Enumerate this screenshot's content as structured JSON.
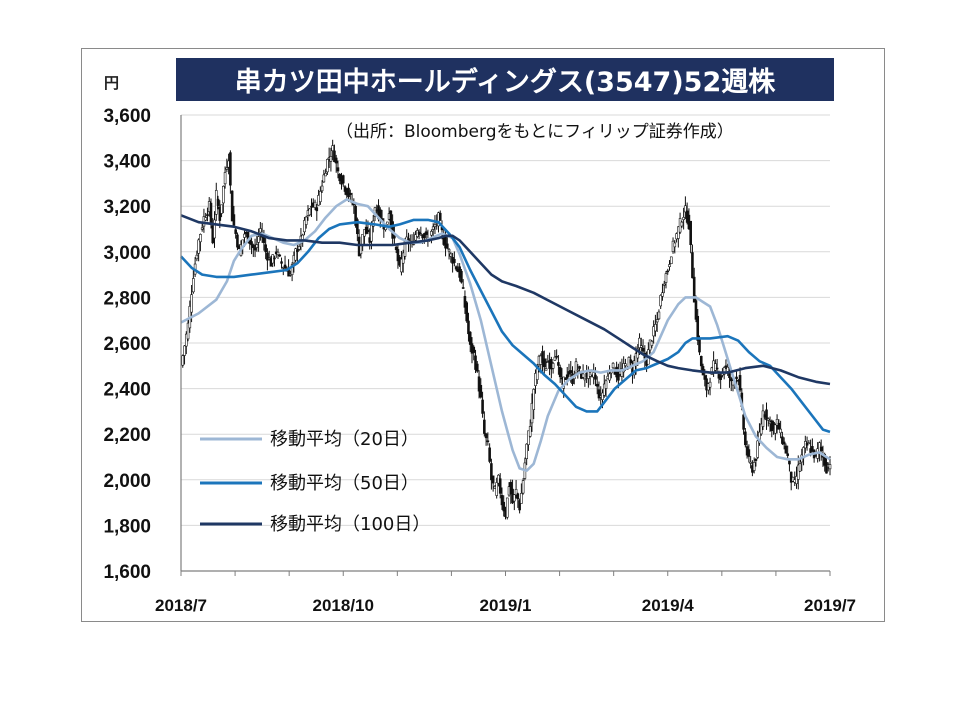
{
  "chart_data": {
    "type": "candlestick",
    "title": "串カツ田中ホールディングス(3547)52週株",
    "subtitle": "（出所：Bloombergをもとにフィリップ証券作成）",
    "ylabel": "円",
    "ylim": [
      1600,
      3600
    ],
    "yticks": [
      "1,600",
      "1,800",
      "2,000",
      "2,200",
      "2,400",
      "2,600",
      "2,800",
      "3,000",
      "3,200",
      "3,400",
      "3,600"
    ],
    "ytick_values": [
      1600,
      1800,
      2000,
      2200,
      2400,
      2600,
      2800,
      3000,
      3200,
      3400,
      3600
    ],
    "xticks": [
      "2018/7",
      "2018/10",
      "2019/1",
      "2019/4",
      "2019/7"
    ],
    "grid": true,
    "legend_position": "lower-left",
    "colors": {
      "ma20": "#9db7d5",
      "ma50": "#1b75bb",
      "ma100": "#1f3864",
      "price": "#111111",
      "title_bg": "#1f3160"
    },
    "price_path": [
      [
        0,
        2500
      ],
      [
        4,
        2680
      ],
      [
        7,
        2900
      ],
      [
        10,
        3050
      ],
      [
        13,
        3150
      ],
      [
        16,
        3200
      ],
      [
        18,
        3050
      ],
      [
        20,
        3250
      ],
      [
        22,
        3150
      ],
      [
        25,
        3350
      ],
      [
        27,
        3420
      ],
      [
        29,
        3150
      ],
      [
        31,
        3080
      ],
      [
        33,
        3000
      ],
      [
        36,
        3080
      ],
      [
        39,
        3050
      ],
      [
        42,
        3000
      ],
      [
        45,
        3100
      ],
      [
        48,
        3000
      ],
      [
        51,
        2950
      ],
      [
        54,
        3000
      ],
      [
        57,
        2950
      ],
      [
        60,
        2920
      ],
      [
        62,
        2900
      ],
      [
        65,
        3000
      ],
      [
        68,
        3050
      ],
      [
        71,
        3150
      ],
      [
        74,
        3200
      ],
      [
        77,
        3200
      ],
      [
        80,
        3300
      ],
      [
        83,
        3400
      ],
      [
        86,
        3450
      ],
      [
        89,
        3350
      ],
      [
        92,
        3300
      ],
      [
        95,
        3250
      ],
      [
        98,
        3200
      ],
      [
        101,
        3000
      ],
      [
        104,
        3100
      ],
      [
        107,
        3050
      ],
      [
        110,
        3200
      ],
      [
        113,
        3150
      ],
      [
        116,
        3100
      ],
      [
        118,
        3180
      ],
      [
        120,
        3080
      ],
      [
        122,
        3000
      ],
      [
        124,
        2920
      ],
      [
        126,
        3000
      ],
      [
        128,
        3050
      ],
      [
        131,
        3030
      ],
      [
        134,
        3100
      ],
      [
        137,
        3080
      ],
      [
        140,
        3050
      ],
      [
        143,
        3100
      ],
      [
        146,
        3150
      ],
      [
        149,
        3050
      ],
      [
        152,
        3000
      ],
      [
        155,
        2950
      ],
      [
        158,
        2900
      ],
      [
        160,
        2820
      ],
      [
        162,
        2700
      ],
      [
        164,
        2580
      ],
      [
        166,
        2550
      ],
      [
        168,
        2460
      ],
      [
        170,
        2350
      ],
      [
        172,
        2200
      ],
      [
        174,
        2150
      ],
      [
        176,
        2000
      ],
      [
        178,
        1950
      ],
      [
        180,
        2000
      ],
      [
        182,
        1900
      ],
      [
        184,
        1850
      ],
      [
        186,
        1980
      ],
      [
        188,
        1900
      ],
      [
        190,
        1950
      ],
      [
        192,
        1880
      ],
      [
        194,
        2000
      ],
      [
        196,
        2150
      ],
      [
        198,
        2250
      ],
      [
        200,
        2400
      ],
      [
        202,
        2500
      ],
      [
        204,
        2550
      ],
      [
        206,
        2480
      ],
      [
        208,
        2520
      ],
      [
        210,
        2500
      ],
      [
        212,
        2560
      ],
      [
        214,
        2480
      ],
      [
        216,
        2420
      ],
      [
        218,
        2450
      ],
      [
        220,
        2470
      ],
      [
        222,
        2440
      ],
      [
        224,
        2500
      ],
      [
        226,
        2470
      ],
      [
        228,
        2450
      ],
      [
        230,
        2460
      ],
      [
        232,
        2450
      ],
      [
        234,
        2470
      ],
      [
        236,
        2400
      ],
      [
        238,
        2350
      ],
      [
        240,
        2420
      ],
      [
        242,
        2450
      ],
      [
        244,
        2500
      ],
      [
        246,
        2480
      ],
      [
        248,
        2450
      ],
      [
        250,
        2480
      ],
      [
        252,
        2500
      ],
      [
        254,
        2520
      ],
      [
        256,
        2480
      ],
      [
        258,
        2550
      ],
      [
        260,
        2600
      ],
      [
        262,
        2550
      ],
      [
        264,
        2520
      ],
      [
        266,
        2600
      ],
      [
        268,
        2650
      ],
      [
        270,
        2700
      ],
      [
        272,
        2800
      ],
      [
        274,
        2880
      ],
      [
        276,
        2920
      ],
      [
        278,
        3000
      ],
      [
        280,
        3050
      ],
      [
        282,
        3100
      ],
      [
        284,
        3150
      ],
      [
        286,
        3180
      ],
      [
        288,
        3120
      ],
      [
        290,
        2900
      ],
      [
        292,
        2700
      ],
      [
        294,
        2550
      ],
      [
        296,
        2450
      ],
      [
        298,
        2400
      ],
      [
        300,
        2450
      ],
      [
        302,
        2500
      ],
      [
        304,
        2480
      ],
      [
        306,
        2450
      ],
      [
        308,
        2500
      ],
      [
        310,
        2480
      ],
      [
        312,
        2420
      ],
      [
        314,
        2450
      ],
      [
        316,
        2450
      ],
      [
        318,
        2300
      ],
      [
        320,
        2150
      ],
      [
        322,
        2080
      ],
      [
        324,
        2050
      ],
      [
        326,
        2100
      ],
      [
        328,
        2200
      ],
      [
        330,
        2300
      ],
      [
        332,
        2280
      ],
      [
        334,
        2250
      ],
      [
        336,
        2220
      ],
      [
        338,
        2250
      ],
      [
        340,
        2200
      ],
      [
        342,
        2150
      ],
      [
        344,
        2100
      ],
      [
        346,
        2000
      ],
      [
        348,
        1980
      ],
      [
        350,
        2050
      ],
      [
        352,
        2100
      ],
      [
        354,
        2150
      ],
      [
        356,
        2150
      ],
      [
        358,
        2120
      ],
      [
        360,
        2100
      ],
      [
        362,
        2150
      ],
      [
        364,
        2100
      ],
      [
        366,
        2050
      ],
      [
        368,
        2080
      ]
    ],
    "series": [
      {
        "name": "移動平均（20日）",
        "color": "#9db7d5",
        "points": [
          [
            0,
            2690
          ],
          [
            10,
            2730
          ],
          [
            20,
            2790
          ],
          [
            26,
            2870
          ],
          [
            30,
            2960
          ],
          [
            34,
            3010
          ],
          [
            40,
            3070
          ],
          [
            46,
            3080
          ],
          [
            52,
            3060
          ],
          [
            58,
            3040
          ],
          [
            64,
            3030
          ],
          [
            70,
            3050
          ],
          [
            76,
            3090
          ],
          [
            82,
            3150
          ],
          [
            88,
            3200
          ],
          [
            94,
            3230
          ],
          [
            100,
            3210
          ],
          [
            106,
            3200
          ],
          [
            112,
            3150
          ],
          [
            118,
            3100
          ],
          [
            124,
            3060
          ],
          [
            130,
            3040
          ],
          [
            136,
            3040
          ],
          [
            142,
            3060
          ],
          [
            148,
            3080
          ],
          [
            154,
            3060
          ],
          [
            158,
            2990
          ],
          [
            164,
            2860
          ],
          [
            170,
            2700
          ],
          [
            176,
            2500
          ],
          [
            182,
            2300
          ],
          [
            188,
            2130
          ],
          [
            192,
            2050
          ],
          [
            196,
            2040
          ],
          [
            200,
            2070
          ],
          [
            204,
            2170
          ],
          [
            208,
            2280
          ],
          [
            214,
            2390
          ],
          [
            220,
            2440
          ],
          [
            226,
            2470
          ],
          [
            232,
            2480
          ],
          [
            238,
            2470
          ],
          [
            244,
            2480
          ],
          [
            250,
            2480
          ],
          [
            256,
            2500
          ],
          [
            262,
            2520
          ],
          [
            268,
            2560
          ],
          [
            272,
            2630
          ],
          [
            276,
            2700
          ],
          [
            282,
            2770
          ],
          [
            286,
            2800
          ],
          [
            292,
            2800
          ],
          [
            296,
            2780
          ],
          [
            300,
            2760
          ],
          [
            304,
            2680
          ],
          [
            308,
            2580
          ],
          [
            312,
            2480
          ],
          [
            316,
            2380
          ],
          [
            320,
            2280
          ],
          [
            326,
            2190
          ],
          [
            332,
            2140
          ],
          [
            338,
            2100
          ],
          [
            344,
            2090
          ],
          [
            350,
            2090
          ],
          [
            356,
            2110
          ],
          [
            362,
            2120
          ],
          [
            368,
            2090
          ]
        ]
      },
      {
        "name": "移動平均（50日）",
        "color": "#1b75bb",
        "points": [
          [
            0,
            2980
          ],
          [
            6,
            2930
          ],
          [
            12,
            2900
          ],
          [
            20,
            2890
          ],
          [
            30,
            2890
          ],
          [
            40,
            2900
          ],
          [
            50,
            2910
          ],
          [
            60,
            2920
          ],
          [
            66,
            2950
          ],
          [
            72,
            3000
          ],
          [
            78,
            3060
          ],
          [
            84,
            3100
          ],
          [
            90,
            3120
          ],
          [
            100,
            3130
          ],
          [
            110,
            3120
          ],
          [
            118,
            3110
          ],
          [
            124,
            3120
          ],
          [
            132,
            3140
          ],
          [
            140,
            3140
          ],
          [
            146,
            3130
          ],
          [
            152,
            3080
          ],
          [
            158,
            3020
          ],
          [
            164,
            2920
          ],
          [
            170,
            2830
          ],
          [
            176,
            2740
          ],
          [
            182,
            2650
          ],
          [
            188,
            2590
          ],
          [
            194,
            2550
          ],
          [
            200,
            2510
          ],
          [
            206,
            2460
          ],
          [
            212,
            2420
          ],
          [
            218,
            2370
          ],
          [
            224,
            2320
          ],
          [
            230,
            2300
          ],
          [
            236,
            2300
          ],
          [
            240,
            2340
          ],
          [
            246,
            2400
          ],
          [
            252,
            2440
          ],
          [
            258,
            2480
          ],
          [
            264,
            2490
          ],
          [
            270,
            2510
          ],
          [
            276,
            2530
          ],
          [
            282,
            2560
          ],
          [
            286,
            2600
          ],
          [
            290,
            2620
          ],
          [
            300,
            2620
          ],
          [
            310,
            2630
          ],
          [
            316,
            2610
          ],
          [
            322,
            2560
          ],
          [
            328,
            2520
          ],
          [
            334,
            2500
          ],
          [
            340,
            2450
          ],
          [
            346,
            2400
          ],
          [
            352,
            2340
          ],
          [
            358,
            2280
          ],
          [
            364,
            2220
          ],
          [
            368,
            2210
          ]
        ]
      },
      {
        "name": "移動平均（100日）",
        "color": "#1f3864",
        "points": [
          [
            0,
            3160
          ],
          [
            10,
            3130
          ],
          [
            20,
            3120
          ],
          [
            30,
            3110
          ],
          [
            40,
            3090
          ],
          [
            50,
            3060
          ],
          [
            60,
            3050
          ],
          [
            70,
            3050
          ],
          [
            80,
            3040
          ],
          [
            90,
            3040
          ],
          [
            100,
            3030
          ],
          [
            110,
            3030
          ],
          [
            120,
            3030
          ],
          [
            130,
            3040
          ],
          [
            140,
            3050
          ],
          [
            146,
            3060
          ],
          [
            150,
            3070
          ],
          [
            154,
            3070
          ],
          [
            158,
            3050
          ],
          [
            164,
            3000
          ],
          [
            170,
            2950
          ],
          [
            176,
            2900
          ],
          [
            182,
            2870
          ],
          [
            190,
            2850
          ],
          [
            200,
            2820
          ],
          [
            210,
            2780
          ],
          [
            220,
            2740
          ],
          [
            230,
            2700
          ],
          [
            240,
            2660
          ],
          [
            250,
            2610
          ],
          [
            256,
            2580
          ],
          [
            262,
            2550
          ],
          [
            270,
            2520
          ],
          [
            276,
            2500
          ],
          [
            282,
            2490
          ],
          [
            290,
            2480
          ],
          [
            300,
            2470
          ],
          [
            310,
            2470
          ],
          [
            320,
            2490
          ],
          [
            330,
            2500
          ],
          [
            340,
            2480
          ],
          [
            350,
            2450
          ],
          [
            360,
            2430
          ],
          [
            368,
            2420
          ]
        ]
      }
    ]
  },
  "header": {
    "unit_label": "円",
    "title": "串カツ田中ホールディングス(3547)52週株",
    "source_note": "（出所：Bloombergをもとにフィリップ証券作成）"
  },
  "legend": [
    {
      "label": "移動平均（20日）",
      "color": "#9db7d5"
    },
    {
      "label": "移動平均（50日）",
      "color": "#1b75bb"
    },
    {
      "label": "移動平均（100日）",
      "color": "#1f3864"
    }
  ]
}
